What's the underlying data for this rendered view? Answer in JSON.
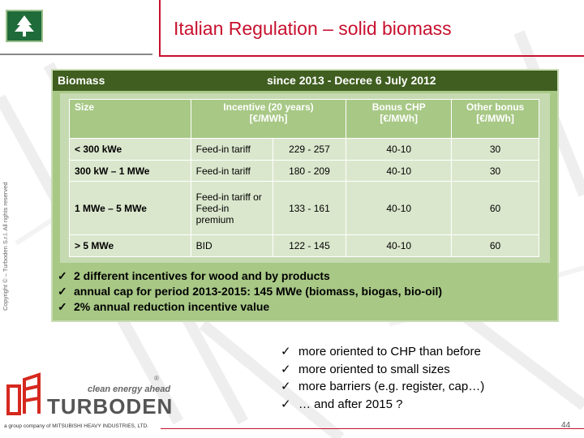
{
  "header": {
    "title": "Italian Regulation – solid biomass"
  },
  "copyright": "Copyright © – Turboden S.r.l. All rights reserved",
  "panel": {
    "header_left": "Biomass",
    "header_right": "since 2013  - Decree 6 July 2012",
    "table": {
      "headers": {
        "size": "Size",
        "incentive_line1": "Incentive  (20 years)",
        "incentive_line2": "[€/MWh]",
        "bonus_line1": "Bonus CHP",
        "bonus_line2": "[€/MWh]",
        "other_line1": "Other bonus",
        "other_line2": "[€/MWh]"
      },
      "rows": [
        {
          "size": "< 300 kWe",
          "scheme": "Feed-in tariff",
          "range": "229 - 257",
          "chp": "40-10",
          "other": "30"
        },
        {
          "size": "300 kW – 1 MWe",
          "scheme": "Feed-in tariff",
          "range": "180 - 209",
          "chp": "40-10",
          "other": "30"
        },
        {
          "size": "1 MWe – 5 MWe",
          "scheme": "Feed-in tariff or Feed-in premium",
          "range": "133 - 161",
          "chp": "40-10",
          "other": "60"
        },
        {
          "size": "> 5 MWe",
          "scheme": "BID",
          "range": "122 - 145",
          "chp": "40-10",
          "other": "60"
        }
      ]
    },
    "bullets": [
      "2 different incentives for wood and by products",
      "annual cap for period 2013-2015: 145 MWe (biomass, biogas, bio-oil)",
      "2% annual reduction incentive value"
    ]
  },
  "bottom_bullets": [
    "more oriented to CHP than before",
    "more oriented to small sizes",
    "more barriers (e.g. register, cap…)",
    "… and after 2015 ?"
  ],
  "brand": {
    "tagline": "clean energy ahead",
    "name": "TURBODEN",
    "registered": "®",
    "group_line": "a group company of  MITSUBISHI HEAVY INDUSTRIES, LTD."
  },
  "footer": {
    "page_number": "44"
  },
  "colors": {
    "accent_red": "#c8102e",
    "panel_green": "#a8c886",
    "header_green": "#3f5e1f"
  },
  "icons": {
    "check": "✓"
  }
}
